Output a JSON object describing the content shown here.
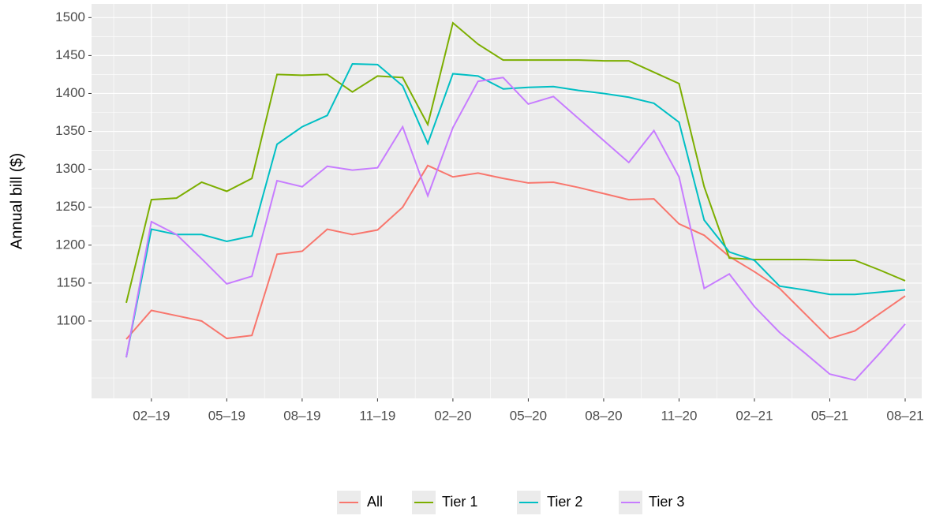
{
  "chart_data": {
    "type": "line",
    "y_label": "Annual bill ($)",
    "categories": [
      null,
      "02–19",
      null,
      null,
      "05–19",
      null,
      null,
      "08–19",
      null,
      null,
      "11–19",
      null,
      null,
      "02–20",
      null,
      null,
      "05–20",
      null,
      null,
      "08–20",
      null,
      null,
      "11–20",
      null,
      null,
      "02–21",
      null,
      null,
      "05–21",
      null,
      null,
      "08–21"
    ],
    "ylim": [
      998,
      1518
    ],
    "yticks": [
      1100,
      1150,
      1200,
      1250,
      1300,
      1350,
      1400,
      1450,
      1500
    ],
    "grid": true,
    "legend": "bottom",
    "series": [
      {
        "name": "All",
        "color": "#F8766D",
        "values": [
          1076,
          1114,
          1107,
          1100,
          1077,
          1081,
          1188,
          1192,
          1221,
          1214,
          1220,
          1250,
          1305,
          1290,
          1295,
          1288,
          1282,
          1283,
          1276,
          1268,
          1260,
          1261,
          1228,
          1213,
          1185,
          1165,
          1143,
          1110,
          1077,
          1087,
          1110,
          1133
        ]
      },
      {
        "name": "Tier 1",
        "color": "#7CAE00",
        "values": [
          1124,
          1260,
          1262,
          1283,
          1271,
          1288,
          1425,
          1424,
          1425,
          1402,
          1423,
          1421,
          1359,
          1493,
          1465,
          1444,
          1444,
          1444,
          1444,
          1443,
          1443,
          1428,
          1413,
          1277,
          1183,
          1181,
          1181,
          1181,
          1180,
          1180,
          1167,
          1153
        ]
      },
      {
        "name": "Tier 2",
        "color": "#00BFC4",
        "values": [
          1052,
          1221,
          1214,
          1214,
          1205,
          1212,
          1333,
          1356,
          1371,
          1439,
          1438,
          1410,
          1334,
          1426,
          1423,
          1406,
          1408,
          1409,
          1404,
          1400,
          1395,
          1387,
          1362,
          1233,
          1191,
          1180,
          1146,
          1141,
          1135,
          1135,
          1138,
          1141
        ]
      },
      {
        "name": "Tier 3",
        "color": "#C77CFF",
        "values": [
          1052,
          1231,
          1214,
          1182,
          1149,
          1159,
          1285,
          1277,
          1304,
          1299,
          1302,
          1356,
          1265,
          1355,
          1416,
          1421,
          1386,
          1396,
          1367,
          1338,
          1309,
          1351,
          1290,
          1143,
          1162,
          1119,
          1085,
          1058,
          1030,
          1022,
          1058,
          1096
        ]
      }
    ]
  }
}
